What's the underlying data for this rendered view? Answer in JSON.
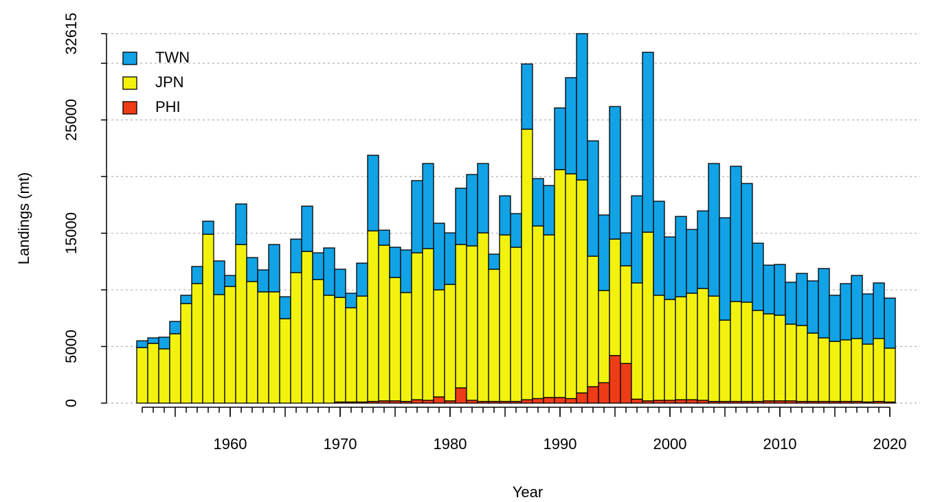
{
  "chart_data": {
    "type": "stacked_bar",
    "x_label": "Year",
    "y_label": "Landings (mt)",
    "x": [
      1952,
      1953,
      1954,
      1955,
      1956,
      1957,
      1958,
      1959,
      1960,
      1961,
      1962,
      1963,
      1964,
      1965,
      1966,
      1967,
      1968,
      1969,
      1970,
      1971,
      1972,
      1973,
      1974,
      1975,
      1976,
      1977,
      1978,
      1979,
      1980,
      1981,
      1982,
      1983,
      1984,
      1985,
      1986,
      1987,
      1988,
      1989,
      1990,
      1991,
      1992,
      1993,
      1994,
      1995,
      1996,
      1997,
      1998,
      1999,
      2000,
      2001,
      2002,
      2003,
      2004,
      2005,
      2006,
      2007,
      2008,
      2009,
      2010,
      2011,
      2012,
      2013,
      2014,
      2015,
      2016,
      2017,
      2018,
      2019,
      2020
    ],
    "series": [
      {
        "name": "TWN",
        "color": "#12a2e6",
        "values": [
          600,
          490,
          1030,
          1090,
          730,
          1510,
          1150,
          2970,
          970,
          3580,
          2120,
          1940,
          4180,
          1940,
          2960,
          4000,
          2360,
          4180,
          2490,
          1280,
          2910,
          6670,
          1330,
          2670,
          3760,
          6370,
          7510,
          5880,
          4550,
          4970,
          6300,
          6120,
          1330,
          3450,
          2970,
          5760,
          4180,
          4360,
          5450,
          8490,
          12915,
          10180,
          6670,
          11700,
          2910,
          7690,
          15880,
          8300,
          5520,
          7090,
          5630,
          6850,
          11700,
          9030,
          11940,
          10480,
          5940,
          4300,
          4480,
          3700,
          4600,
          4610,
          6120,
          4070,
          4970,
          5570,
          4430,
          4910,
          4420
        ]
      },
      {
        "name": "JPN",
        "color": "#f2f20e",
        "values": [
          4900,
          5270,
          4790,
          6120,
          8790,
          10550,
          14910,
          9580,
          10300,
          14000,
          10730,
          9820,
          9820,
          7450,
          11520,
          13390,
          10910,
          9520,
          9230,
          8320,
          9350,
          15060,
          13740,
          10890,
          9610,
          12970,
          13390,
          9450,
          10280,
          12650,
          13630,
          14880,
          11670,
          14700,
          13610,
          23880,
          15240,
          14350,
          20110,
          19840,
          18800,
          11520,
          8140,
          10280,
          8620,
          10260,
          14890,
          9270,
          8900,
          9090,
          9400,
          9870,
          9300,
          7180,
          8820,
          8760,
          8030,
          7680,
          7560,
          6770,
          6700,
          6030,
          5610,
          5300,
          5430,
          5550,
          5110,
          5550,
          4750
        ]
      },
      {
        "name": "PHI",
        "color": "#ee3b18",
        "values": [
          0,
          0,
          0,
          0,
          0,
          0,
          0,
          0,
          0,
          0,
          0,
          0,
          0,
          0,
          0,
          0,
          0,
          0,
          100,
          100,
          100,
          150,
          200,
          200,
          150,
          300,
          250,
          550,
          200,
          1350,
          250,
          150,
          150,
          150,
          150,
          300,
          400,
          500,
          500,
          400,
          900,
          1450,
          1800,
          4200,
          3500,
          350,
          200,
          250,
          250,
          300,
          300,
          250,
          150,
          150,
          150,
          150,
          150,
          200,
          200,
          200,
          150,
          150,
          150,
          150,
          150,
          150,
          100,
          150,
          100
        ]
      }
    ],
    "xlim": [
      1949,
      2023
    ],
    "xticks": [
      1960,
      1970,
      1980,
      1990,
      2000,
      2010,
      2020
    ],
    "ylim": [
      0,
      32615
    ],
    "yticks": [
      0,
      5000,
      15000,
      25000,
      32615
    ],
    "grid_values": [
      0,
      5000,
      10000,
      15000,
      20000,
      25000,
      30000,
      32615
    ],
    "grid": true,
    "legend": "top-left"
  }
}
